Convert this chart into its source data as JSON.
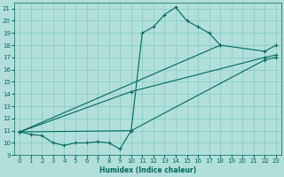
{
  "xlabel": "Humidex (Indice chaleur)",
  "bg_color": "#b2dfdb",
  "grid_color": "#80cbc4",
  "line_color": "#00695c",
  "marker": "+",
  "xlim": [
    -0.5,
    23.5
  ],
  "ylim": [
    9,
    21.5
  ],
  "xticks": [
    0,
    1,
    2,
    3,
    4,
    5,
    6,
    7,
    8,
    9,
    10,
    11,
    12,
    13,
    14,
    15,
    16,
    17,
    18,
    19,
    20,
    21,
    22,
    23
  ],
  "yticks": [
    9,
    10,
    11,
    12,
    13,
    14,
    15,
    16,
    17,
    18,
    19,
    20,
    21
  ],
  "lines": [
    {
      "x": [
        0,
        1,
        2,
        3,
        4,
        5,
        6,
        7,
        8,
        9,
        10,
        11,
        12,
        13,
        14,
        15,
        16,
        17,
        18
      ],
      "y": [
        10.9,
        10.7,
        10.6,
        10.0,
        9.8,
        10.0,
        10.0,
        10.1,
        10.0,
        9.5,
        11.0,
        19.0,
        19.5,
        20.5,
        21.1,
        20.0,
        19.5,
        19.0,
        18.0
      ]
    },
    {
      "x": [
        0,
        18,
        22,
        23
      ],
      "y": [
        10.9,
        18.0,
        17.5,
        18.0
      ]
    },
    {
      "x": [
        0,
        10,
        22,
        23
      ],
      "y": [
        10.9,
        14.2,
        17.0,
        17.2
      ]
    },
    {
      "x": [
        0,
        10,
        22,
        23
      ],
      "y": [
        10.9,
        11.0,
        16.8,
        17.0
      ]
    }
  ]
}
